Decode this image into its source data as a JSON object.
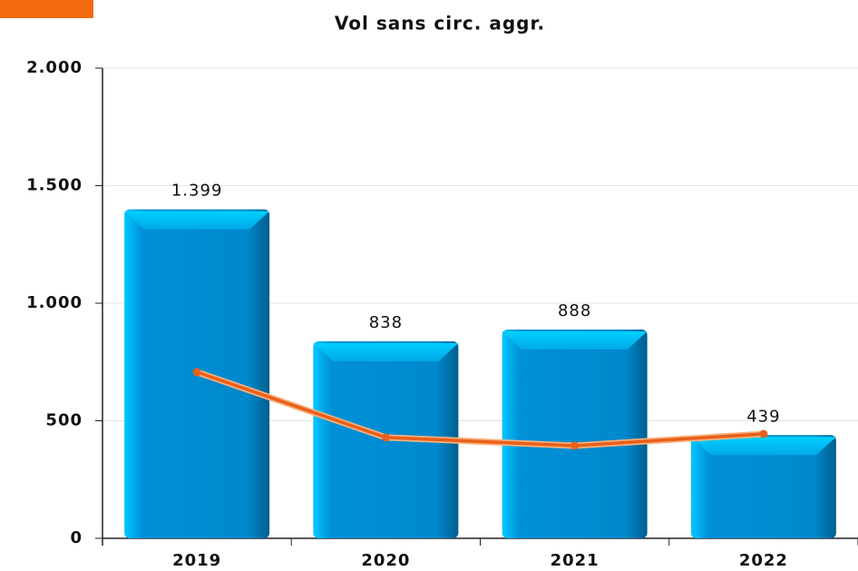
{
  "chart_data": {
    "type": "bar",
    "title": "Vol sans circ. aggr.",
    "categories": [
      "2019",
      "2020",
      "2021",
      "2022"
    ],
    "series": [
      {
        "type": "bar",
        "color": "#0088cc",
        "values": [
          1399,
          838,
          888,
          439
        ],
        "value_labels": [
          "1.399",
          "838",
          "888",
          "439"
        ]
      },
      {
        "type": "line",
        "color": "#e8601c",
        "values": [
          707,
          429,
          394,
          444
        ]
      }
    ],
    "ylim": [
      0,
      2000
    ],
    "yticks": [
      0,
      500,
      {
        "value": 1000,
        "label": "1.000"
      },
      {
        "value": 1500,
        "label": "1.500"
      },
      {
        "value": 2000,
        "label": "2.000"
      }
    ],
    "grid": true
  }
}
